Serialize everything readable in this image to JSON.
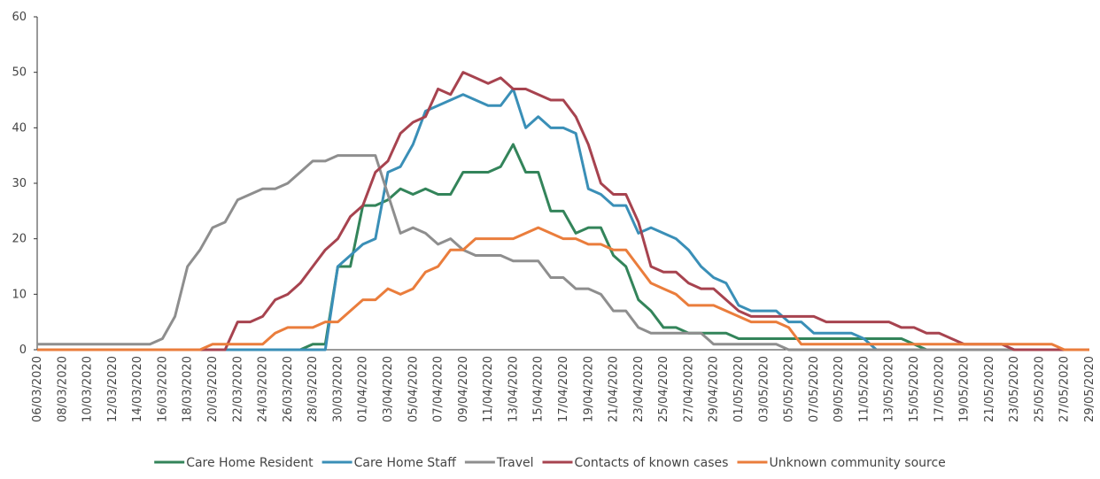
{
  "chart_data": {
    "type": "line",
    "categories": [
      "06/03/2020",
      null,
      "08/03/2020",
      null,
      "10/03/2020",
      null,
      "12/03/2020",
      null,
      "14/03/2020",
      null,
      "16/03/2020",
      null,
      "18/03/2020",
      null,
      "20/03/2020",
      null,
      "22/03/2020",
      null,
      "24/03/2020",
      null,
      "26/03/2020",
      null,
      "28/03/2020",
      null,
      "30/03/2020",
      null,
      "01/04/2020",
      null,
      "03/04/2020",
      null,
      "05/04/2020",
      null,
      "07/04/2020",
      null,
      "09/04/2020",
      null,
      "11/04/2020",
      null,
      "13/04/2020",
      null,
      "15/04/2020",
      null,
      "17/04/2020",
      null,
      "19/04/2020",
      null,
      "21/04/2020",
      null,
      "23/04/2020",
      null,
      "25/04/2020",
      null,
      "27/04/2020",
      null,
      "29/04/2020",
      null,
      "01/05/2020",
      null,
      "03/05/2020",
      null,
      "05/05/2020",
      null,
      "07/05/2020",
      null,
      "09/05/2020",
      null,
      "11/05/2020",
      null,
      "13/05/2020",
      null,
      "15/05/2020",
      null,
      "17/05/2020",
      null,
      "19/05/2020",
      null,
      "21/05/2020",
      null,
      "23/05/2020",
      null,
      "25/05/2020",
      null,
      "27/05/2020",
      null,
      "29/05/2020"
    ],
    "series": [
      {
        "name": "Care Home Resident",
        "color": "#33845a",
        "values": [
          0,
          0,
          0,
          0,
          0,
          0,
          0,
          0,
          0,
          0,
          0,
          0,
          0,
          0,
          0,
          0,
          0,
          0,
          0,
          0,
          0,
          0,
          1,
          1,
          15,
          15,
          26,
          26,
          27,
          29,
          28,
          29,
          28,
          28,
          32,
          32,
          32,
          33,
          37,
          32,
          32,
          25,
          25,
          21,
          22,
          22,
          17,
          15,
          9,
          7,
          4,
          4,
          3,
          3,
          3,
          3,
          2,
          2,
          2,
          2,
          2,
          2,
          2,
          2,
          2,
          2,
          2,
          2,
          2,
          2,
          1,
          0,
          0,
          0,
          0,
          0,
          0,
          0,
          0,
          0,
          0,
          0,
          0,
          0,
          0
        ]
      },
      {
        "name": "Care Home Staff",
        "color": "#3a8fb7",
        "values": [
          0,
          0,
          0,
          0,
          0,
          0,
          0,
          0,
          0,
          0,
          0,
          0,
          0,
          0,
          0,
          0,
          0,
          0,
          0,
          0,
          0,
          0,
          0,
          0,
          15,
          17,
          19,
          20,
          32,
          33,
          37,
          43,
          44,
          45,
          46,
          45,
          44,
          44,
          47,
          40,
          42,
          40,
          40,
          39,
          29,
          28,
          26,
          26,
          21,
          22,
          21,
          20,
          18,
          15,
          13,
          12,
          8,
          7,
          7,
          7,
          5,
          5,
          3,
          3,
          3,
          3,
          2,
          0,
          0,
          0,
          0,
          0,
          0,
          0,
          0,
          0,
          0,
          0,
          0,
          0,
          0,
          0,
          0,
          0,
          0
        ]
      },
      {
        "name": "Travel",
        "color": "#8e8e8e",
        "values": [
          1,
          1,
          1,
          1,
          1,
          1,
          1,
          1,
          1,
          1,
          2,
          6,
          15,
          18,
          22,
          23,
          27,
          28,
          29,
          29,
          30,
          32,
          34,
          34,
          35,
          35,
          35,
          35,
          28,
          21,
          22,
          21,
          19,
          20,
          18,
          17,
          17,
          17,
          16,
          16,
          16,
          13,
          13,
          11,
          11,
          10,
          7,
          7,
          4,
          3,
          3,
          3,
          3,
          3,
          1,
          1,
          1,
          1,
          1,
          1,
          0,
          0,
          0,
          0,
          0,
          0,
          0,
          0,
          0,
          0,
          0,
          0,
          0,
          0,
          0,
          0,
          0,
          0,
          0,
          0,
          0,
          0,
          0,
          0,
          0
        ]
      },
      {
        "name": "Contacts of known cases",
        "color": "#a7434f",
        "values": [
          0,
          0,
          0,
          0,
          0,
          0,
          0,
          0,
          0,
          0,
          0,
          0,
          0,
          0,
          0,
          0,
          5,
          5,
          6,
          9,
          10,
          12,
          15,
          18,
          20,
          24,
          26,
          32,
          34,
          39,
          41,
          42,
          47,
          46,
          50,
          49,
          48,
          49,
          47,
          47,
          46,
          45,
          45,
          42,
          37,
          30,
          28,
          28,
          23,
          15,
          14,
          14,
          12,
          11,
          11,
          9,
          7,
          6,
          6,
          6,
          6,
          6,
          6,
          5,
          5,
          5,
          5,
          5,
          5,
          4,
          4,
          3,
          3,
          2,
          1,
          1,
          1,
          1,
          0,
          0,
          0,
          0,
          0,
          0,
          0
        ]
      },
      {
        "name": "Unknown community source",
        "color": "#ea7d3c",
        "values": [
          0,
          0,
          0,
          0,
          0,
          0,
          0,
          0,
          0,
          0,
          0,
          0,
          0,
          0,
          1,
          1,
          1,
          1,
          1,
          3,
          4,
          4,
          4,
          5,
          5,
          7,
          9,
          9,
          11,
          10,
          11,
          14,
          15,
          18,
          18,
          20,
          20,
          20,
          20,
          21,
          22,
          21,
          20,
          20,
          19,
          19,
          18,
          18,
          15,
          12,
          11,
          10,
          8,
          8,
          8,
          7,
          6,
          5,
          5,
          5,
          4,
          1,
          1,
          1,
          1,
          1,
          1,
          1,
          1,
          1,
          1,
          1,
          1,
          1,
          1,
          1,
          1,
          1,
          1,
          1,
          1,
          1,
          0,
          0,
          0
        ]
      }
    ],
    "ylim": [
      0,
      60
    ],
    "yticks": [
      0,
      10,
      20,
      30,
      40,
      50,
      60
    ],
    "grid": false,
    "legend": "bottom"
  }
}
